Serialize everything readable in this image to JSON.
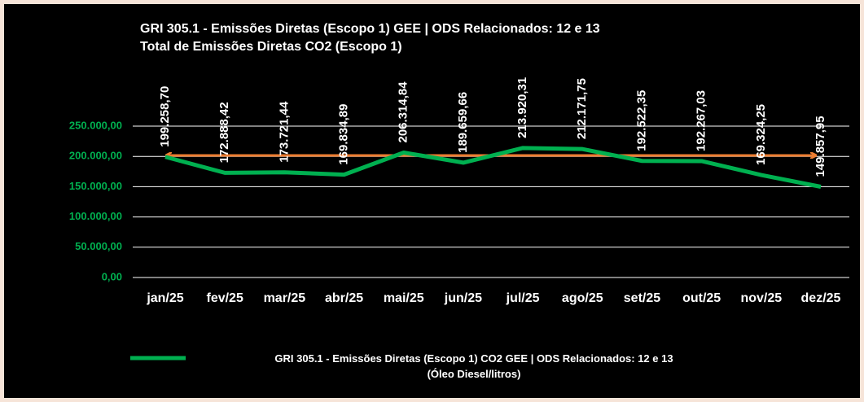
{
  "chart_data": {
    "type": "line",
    "title": "GRI 305.1 - Emissões Diretas (Escopo 1) GEE | ODS Relacionados: 12 e 13",
    "subtitle": "Total de Emissões Diretas CO2 (Escopo 1)",
    "categories": [
      "jan/25",
      "fev/25",
      "mar/25",
      "abr/25",
      "mai/25",
      "jun/25",
      "jul/25",
      "ago/25",
      "set/25",
      "out/25",
      "nov/25",
      "dez/25"
    ],
    "series": [
      {
        "name": "GRI 305.1 - Emissões Diretas (Escopo 1) CO2 GEE | ODS Relacionados: 12 e 13\n(Óleo Diesel/litros)",
        "color": "#00b050",
        "values": [
          199258.7,
          172888.42,
          173721.44,
          169834.89,
          206314.84,
          189659.66,
          213920.31,
          212171.75,
          192522.35,
          192267.03,
          169324.25,
          149857.95
        ],
        "value_labels": [
          "199.258,70",
          "172.888,42",
          "173.721,44",
          "169.834,89",
          "206.314,84",
          "189.659,66",
          "213.920,31",
          "212.171,75",
          "192.522,35",
          "192.267,03",
          "169.324,25",
          "149.857,95"
        ]
      }
    ],
    "ylim": [
      0,
      250000
    ],
    "yticks": [
      {
        "value": 0,
        "label": "0,00"
      },
      {
        "value": 50000,
        "label": "50.000,00"
      },
      {
        "value": 100000,
        "label": "100.000,00"
      },
      {
        "value": 150000,
        "label": "150.000,00"
      },
      {
        "value": 200000,
        "label": "200.000,00"
      },
      {
        "value": 250000,
        "label": "250.000,00"
      }
    ],
    "grid": true,
    "legend": "bottom"
  }
}
